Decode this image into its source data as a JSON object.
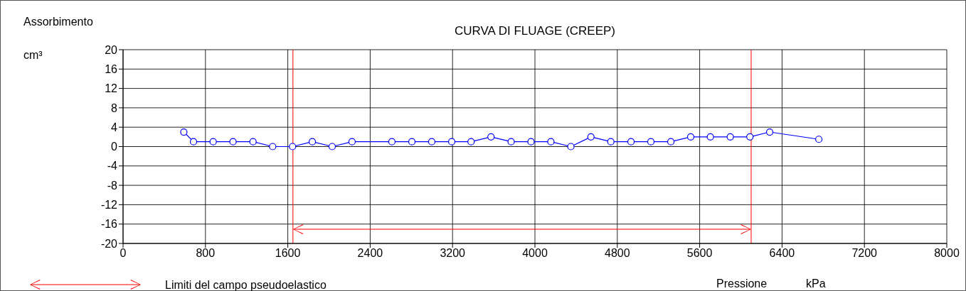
{
  "chart_data": {
    "type": "line",
    "title": "CURVA DI FLUAGE (CREEP)",
    "xlabel": "Pressione kPa",
    "ylabel": "Assorbimento cm³",
    "x": [
      590,
      684,
      875,
      1068,
      1262,
      1453,
      1646,
      1838,
      2031,
      2224,
      2611,
      2805,
      2998,
      3192,
      3380,
      3573,
      3769,
      3962,
      4155,
      4349,
      4544,
      4737,
      4933,
      5126,
      5320,
      5513,
      5704,
      5897,
      6088,
      6280,
      6757
    ],
    "series": [
      {
        "color": "#0000ff",
        "values": [
          3,
          1,
          1,
          1,
          1,
          0,
          0,
          1,
          0,
          1,
          1,
          1,
          1,
          1,
          1,
          2,
          1,
          1,
          1,
          0,
          2,
          1,
          1,
          1,
          1,
          2,
          2,
          2,
          2,
          3,
          1.5
        ]
      }
    ],
    "xlim": [
      0,
      8000
    ],
    "xticks": [
      0,
      800,
      1600,
      2400,
      3200,
      4000,
      4800,
      5600,
      6400,
      7200,
      8000
    ],
    "ylim": [
      -20,
      20
    ],
    "yticks": [
      20,
      16,
      12,
      8,
      4,
      0,
      -4,
      -8,
      -12,
      -16,
      -20
    ],
    "ref_lines": [
      {
        "axis": "x",
        "value": 1650,
        "color": "#ff0000"
      },
      {
        "axis": "x",
        "value": 6100,
        "color": "#ff0000"
      }
    ],
    "annotations": [
      "Limiti del campo pseudoelastico"
    ],
    "grid": true,
    "marker": "circle",
    "line_style": "solid"
  }
}
